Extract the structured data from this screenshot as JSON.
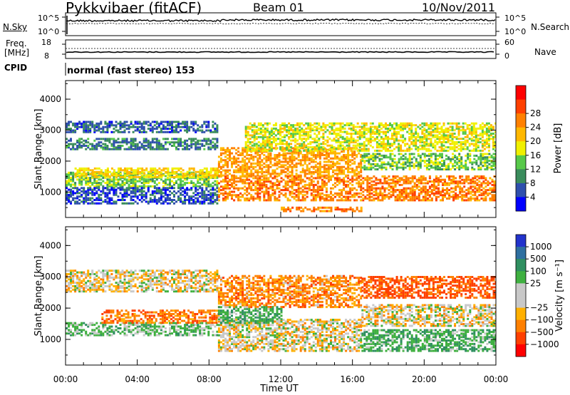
{
  "header": {
    "station": "Pykkvibaer (fitACF)",
    "beam": "Beam 01",
    "date": "10/Nov/2011"
  },
  "strips": {
    "nsky": {
      "label": "N.Sky",
      "ticks": [
        "10^5",
        "10^0"
      ]
    },
    "nsearch": {
      "label": "N.Search",
      "ticks": [
        "10^5",
        "10^0"
      ]
    },
    "freq": {
      "label_line1": "Freq.",
      "label_line2": "[MHz]",
      "ticks": [
        "18",
        "8"
      ]
    },
    "nave": {
      "label": "Nave",
      "ticks": [
        "60",
        "0"
      ]
    },
    "cpid": {
      "label": "CPID",
      "value": "normal (fast stereo) 153"
    }
  },
  "chart_data": [
    {
      "type": "heatmap",
      "name": "power",
      "xlabel": "",
      "ylabel": "Slant Range [km]",
      "xlim": [
        0,
        24
      ],
      "ylim": [
        180,
        4600
      ],
      "yticks": [
        "1000",
        "2000",
        "3000",
        "4000"
      ],
      "colorbar": {
        "label": "Power [dB]",
        "ticks": [
          "4",
          "8",
          "12",
          "16",
          "20",
          "24",
          "28"
        ],
        "colors": [
          "#0000ff",
          "#2e4fad",
          "#3a8c5c",
          "#57c94a",
          "#f0f000",
          "#ffb800",
          "#ff8000",
          "#ff4000",
          "#ff0000"
        ]
      },
      "bands": [
        {
          "t0": 0.0,
          "t1": 8.5,
          "r0": 2900,
          "r1": 3250,
          "v": 7
        },
        {
          "t0": 0.0,
          "t1": 8.5,
          "r0": 2350,
          "r1": 2700,
          "v": 9
        },
        {
          "t0": 0.0,
          "t1": 8.5,
          "r0": 1150,
          "r1": 1600,
          "v": 14
        },
        {
          "t0": 0.0,
          "t1": 8.5,
          "r0": 600,
          "r1": 1150,
          "v": 6
        },
        {
          "t0": 0.5,
          "t1": 8.5,
          "r0": 1450,
          "r1": 1750,
          "v": 20
        },
        {
          "t0": 8.5,
          "t1": 24.0,
          "r0": 700,
          "r1": 1500,
          "v": 26
        },
        {
          "t0": 8.5,
          "t1": 16.5,
          "r0": 1500,
          "r1": 2400,
          "v": 24
        },
        {
          "t0": 10.0,
          "t1": 24.0,
          "r0": 2300,
          "r1": 3200,
          "v": 18
        },
        {
          "t0": 16.5,
          "t1": 24.0,
          "r0": 1700,
          "r1": 2200,
          "v": 14
        },
        {
          "t0": 12.0,
          "t1": 16.5,
          "r0": 350,
          "r1": 500,
          "v": 26
        }
      ]
    },
    {
      "type": "heatmap",
      "name": "velocity",
      "xlabel": "Time UT",
      "ylabel": "Slant Range [km]",
      "xlim": [
        0,
        24
      ],
      "ylim": [
        180,
        4600
      ],
      "xticks": [
        "00:00",
        "04:00",
        "08:00",
        "12:00",
        "16:00",
        "20:00",
        "00:00"
      ],
      "yticks": [
        "1000",
        "2000",
        "3000",
        "4000"
      ],
      "colorbar": {
        "label": "Velocity [m s⁻¹]",
        "ticks": [
          "1000",
          "500",
          "100",
          "25",
          "−25",
          "−100",
          "−500",
          "−1000"
        ],
        "colors": [
          "#2233cc",
          "#2e6fa0",
          "#2f8f60",
          "#3fb040",
          "#c8c8c8",
          "#c8c8c8",
          "#ffb000",
          "#ff8000",
          "#ff4000",
          "#ff0000"
        ]
      },
      "bands": [
        {
          "t0": 0.0,
          "t1": 8.5,
          "r0": 2500,
          "r1": 3200,
          "v": 0
        },
        {
          "t0": 0.0,
          "t1": 8.5,
          "r0": 1100,
          "r1": 1500,
          "v": 150
        },
        {
          "t0": 2.0,
          "t1": 8.5,
          "r0": 1500,
          "r1": 1900,
          "v": -200
        },
        {
          "t0": 8.5,
          "t1": 16.5,
          "r0": 600,
          "r1": 1600,
          "v": 0
        },
        {
          "t0": 8.5,
          "t1": 16.5,
          "r0": 2000,
          "r1": 3000,
          "v": -150
        },
        {
          "t0": 8.5,
          "t1": 12.0,
          "r0": 1500,
          "r1": 2000,
          "v": 200
        },
        {
          "t0": 16.5,
          "t1": 24.0,
          "r0": 600,
          "r1": 1300,
          "v": 200
        },
        {
          "t0": 16.5,
          "t1": 24.0,
          "r0": 1400,
          "r1": 2100,
          "v": 0
        },
        {
          "t0": 16.5,
          "t1": 24.0,
          "r0": 2300,
          "r1": 3000,
          "v": -300
        }
      ]
    }
  ]
}
